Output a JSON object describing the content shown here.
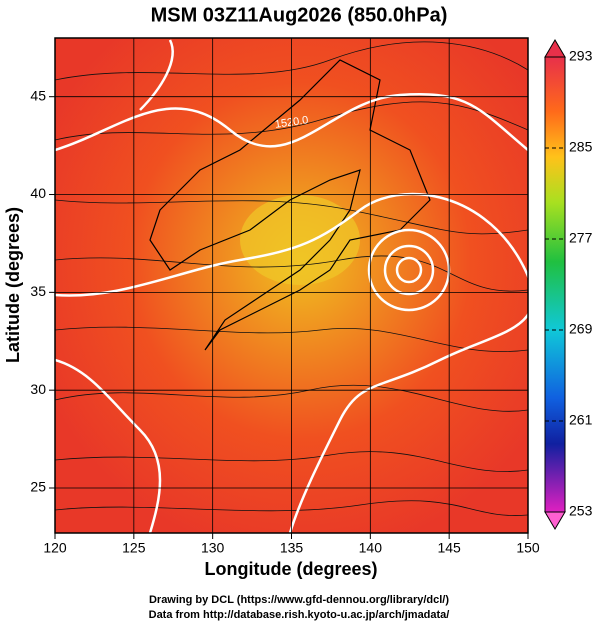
{
  "title": "MSM 03Z11Aug2026 (850.0hPa)",
  "x_axis": {
    "label": "Longitude (degrees)",
    "lim": [
      120,
      150
    ],
    "ticks": [
      120,
      125,
      130,
      135,
      140,
      145,
      150
    ]
  },
  "y_axis": {
    "label": "Latitude  (degrees)",
    "lim": [
      22.7,
      48
    ],
    "ticks": [
      25,
      30,
      35,
      40,
      45
    ]
  },
  "colorbar": {
    "lim": [
      253,
      293
    ],
    "ticks": [
      253,
      261,
      269,
      277,
      285,
      293
    ]
  },
  "contour_labels": [
    "1520.0"
  ],
  "credits": [
    "Drawing by DCL (https://www.gfd-dennou.org/library/dcl/)",
    "Data from http://database.rish.kyoto-u.ac.jp/arch/jmadata/"
  ]
}
